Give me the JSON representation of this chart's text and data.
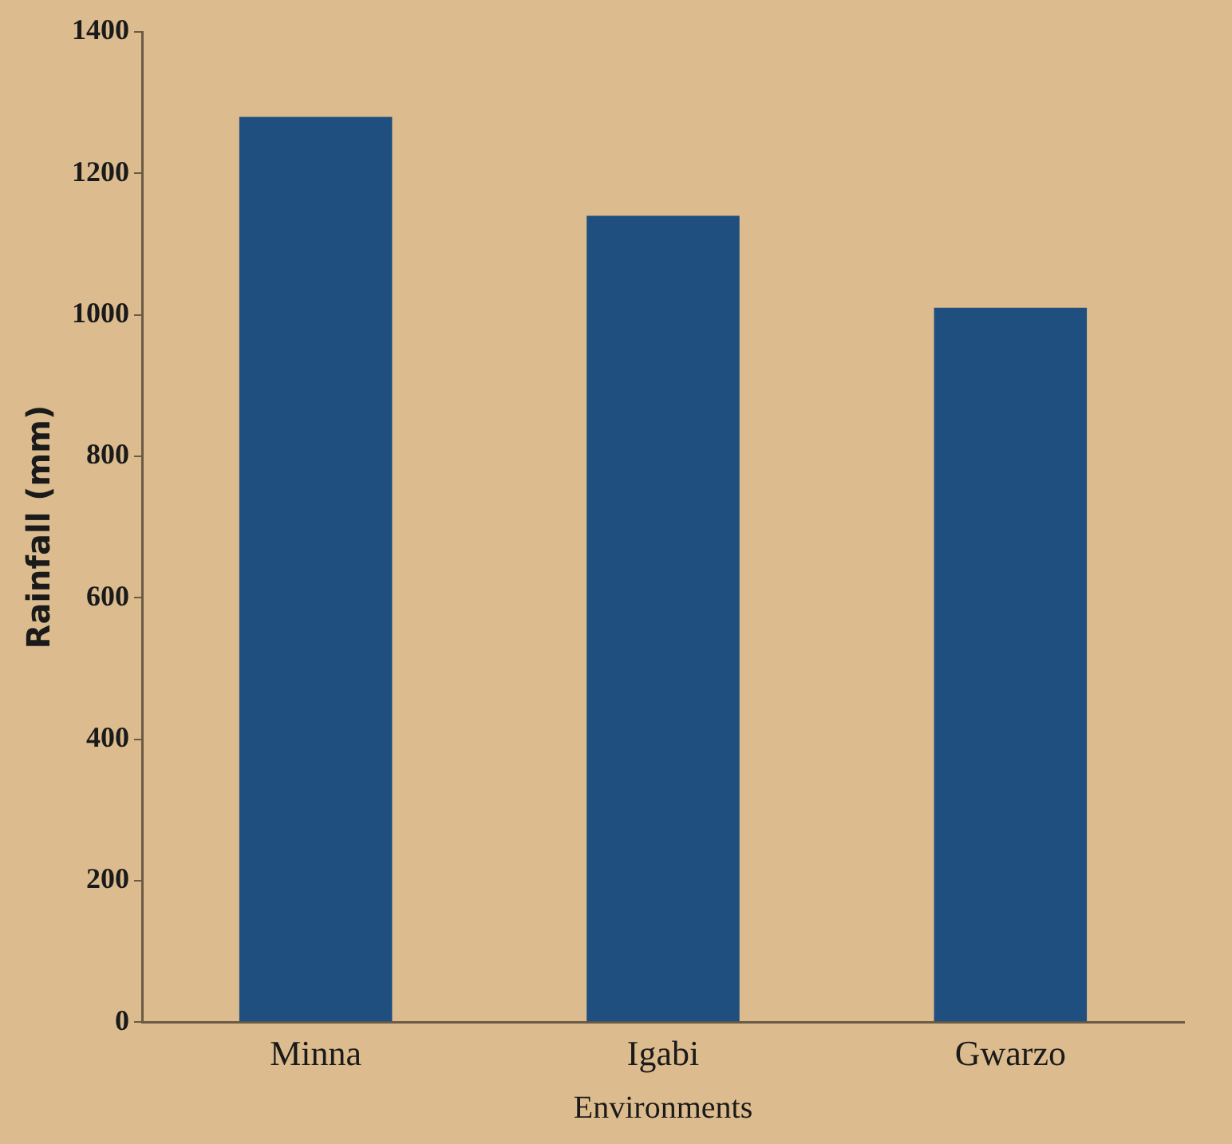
{
  "chart_data": {
    "type": "bar",
    "xlabel": "Environments",
    "ylabel": "Rainfall (mm)",
    "categories": [
      "Minna",
      "Igabi",
      "Gwarzo"
    ],
    "values": [
      1280,
      1140,
      1010
    ],
    "color": "#1f4f7f",
    "ylim": [
      0,
      1400
    ],
    "yticks": [
      0,
      200,
      400,
      600,
      800,
      1000,
      1200,
      1400
    ],
    "grid": false,
    "legend": false
  }
}
